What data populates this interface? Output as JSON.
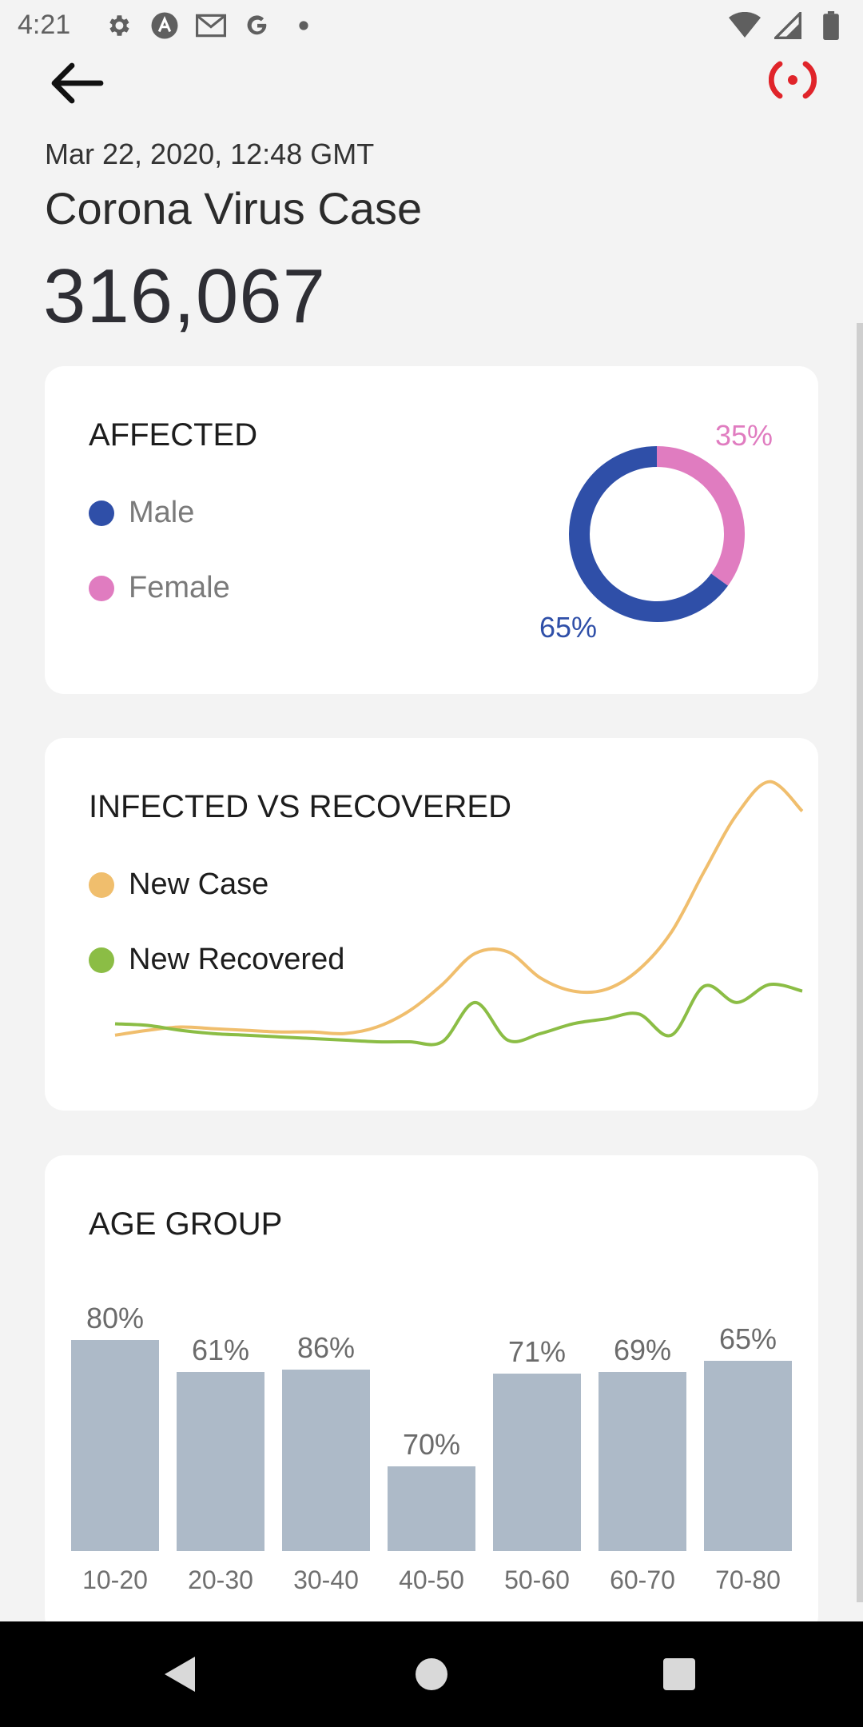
{
  "status_bar": {
    "time": "4:21",
    "left_icons": [
      "settings-icon",
      "a-icon",
      "gmail-icon",
      "g-icon",
      "dot-icon"
    ],
    "right_icons": [
      "wifi-icon",
      "signal-icon",
      "battery-icon"
    ]
  },
  "header": {
    "date": "Mar 22, 2020, 12:48 GMT",
    "title": "Corona Virus Case",
    "total": "316,067",
    "flag_color": "#e0242a"
  },
  "affected": {
    "title": "AFFECTED",
    "legend": [
      {
        "label": "Male",
        "color": "#2f4fa8"
      },
      {
        "label": "Female",
        "color": "#e07cc0"
      }
    ],
    "male_pct_label": "65%",
    "female_pct_label": "35%",
    "chart_data": {
      "type": "pie",
      "categories": [
        "Male",
        "Female"
      ],
      "values": [
        65,
        35
      ]
    }
  },
  "infected": {
    "title": "INFECTED VS RECOVERED",
    "legend": [
      {
        "label": "New Case",
        "color": "#f0be6d"
      },
      {
        "label": "New Recovered",
        "color": "#8bbd45"
      }
    ],
    "chart_data": {
      "type": "line",
      "series": [
        {
          "name": "New Case",
          "color": "#f0be6d",
          "values": [
            5,
            8,
            10,
            9,
            8,
            7,
            7,
            6,
            10,
            20,
            36,
            55,
            56,
            40,
            32,
            33,
            45,
            68,
            105,
            140,
            160,
            142
          ]
        },
        {
          "name": "New Recovered",
          "color": "#8bbd45",
          "values": [
            12,
            11,
            8,
            6,
            5,
            4,
            3,
            2,
            1,
            1,
            1,
            25,
            2,
            6,
            12,
            15,
            18,
            5,
            35,
            25,
            36,
            32
          ]
        }
      ],
      "ylim": [
        0,
        175
      ]
    }
  },
  "age": {
    "title": "AGE GROUP",
    "chart_data": {
      "type": "bar",
      "categories": [
        "10-20",
        "20-30",
        "30-40",
        "40-50",
        "50-60",
        "60-70",
        "70-80"
      ],
      "values": [
        80,
        61,
        86,
        70,
        71,
        69,
        65
      ],
      "labels": [
        "80%",
        "61%",
        "86%",
        "70%",
        "71%",
        "69%",
        "65%"
      ],
      "display_fraction": [
        1.0,
        0.85,
        0.86,
        0.4,
        0.84,
        0.85,
        0.9
      ],
      "bar_color": "#adbac8"
    }
  },
  "nav": {
    "icons": [
      "back-nav-icon",
      "home-nav-icon",
      "recents-nav-icon"
    ]
  }
}
